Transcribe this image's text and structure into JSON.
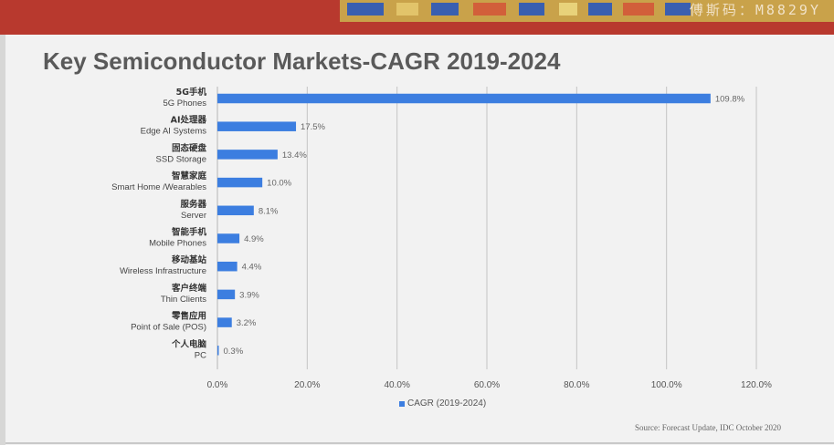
{
  "watermark": "傅斯码：M8829Y",
  "slide": {
    "title": "Key Semiconductor Markets-CAGR 2019-2024",
    "source": "Source: Forecast Update, IDC October 2020"
  },
  "colors": {
    "bar": "#3c7ee0",
    "banner": "#b8392e"
  },
  "chart_data": {
    "type": "bar",
    "orientation": "horizontal",
    "categories": [
      {
        "cn": "5G手机",
        "en": "5G Phones"
      },
      {
        "cn": "AI处理器",
        "en": "Edge AI Systems"
      },
      {
        "cn": "固态硬盘",
        "en": "SSD Storage"
      },
      {
        "cn": "智慧家庭",
        "en": "Smart Home /Wearables"
      },
      {
        "cn": "服务器",
        "en": "Server"
      },
      {
        "cn": "智能手机",
        "en": "Mobile Phones"
      },
      {
        "cn": "移动基站",
        "en": "Wireless Infrastructure"
      },
      {
        "cn": "客户终端",
        "en": "Thin Clients"
      },
      {
        "cn": "零售应用",
        "en": "Point of Sale (POS)"
      },
      {
        "cn": "个人电脑",
        "en": "PC"
      }
    ],
    "series": [
      {
        "name": "CAGR (2019-2024)",
        "values": [
          109.8,
          17.5,
          13.4,
          10.0,
          8.1,
          4.9,
          4.4,
          3.9,
          3.2,
          0.3
        ]
      }
    ],
    "data_labels": [
      "109.8%",
      "17.5%",
      "13.4%",
      "10.0%",
      "8.1%",
      "4.9%",
      "4.4%",
      "3.9%",
      "3.2%",
      "0.3%"
    ],
    "x_ticks": [
      "0.0%",
      "20.0%",
      "40.0%",
      "60.0%",
      "80.0%",
      "100.0%",
      "120.0%"
    ],
    "xlim": [
      0,
      120
    ],
    "grid": "vertical",
    "legend": "bottom"
  }
}
